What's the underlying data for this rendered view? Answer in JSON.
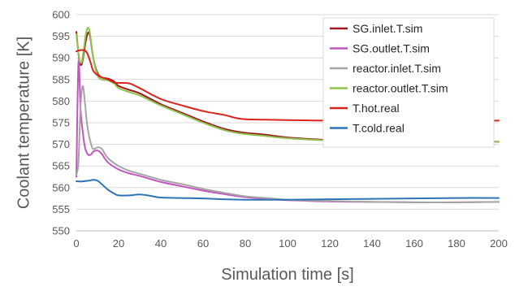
{
  "chart_data": {
    "type": "line",
    "title": "",
    "xlabel": "Simulation time [s]",
    "ylabel": "Coolant temperature [K]",
    "xlim": [
      0,
      200
    ],
    "ylim": [
      550,
      600
    ],
    "xticks": [
      0,
      20,
      40,
      60,
      80,
      100,
      120,
      140,
      160,
      180,
      200
    ],
    "yticks": [
      550,
      555,
      560,
      565,
      570,
      575,
      580,
      585,
      590,
      595,
      600
    ],
    "grid": "horizontal",
    "legend_position": "top-right",
    "series": [
      {
        "name": "SG.inlet.T.sim",
        "color": "#a0171d",
        "x": [
          0,
          0.8,
          1.5,
          2.5,
          3.5,
          4.5,
          5.5,
          6.5,
          8,
          10,
          12,
          15,
          18,
          20,
          25,
          30,
          40,
          50,
          60,
          70,
          78,
          90,
          100,
          120,
          140,
          160,
          180,
          200
        ],
        "y": [
          596,
          592,
          589,
          588.5,
          591,
          594,
          595.8,
          595,
          590,
          586.5,
          585.5,
          585.2,
          584.5,
          583.5,
          582.6,
          581.8,
          579.3,
          577.3,
          575.3,
          573.6,
          572.8,
          572.2,
          571.6,
          571,
          570.9,
          570.8,
          570.7,
          570.6
        ]
      },
      {
        "name": "SG.outlet.T.sim",
        "color": "#c156be",
        "x": [
          0,
          1,
          2,
          3,
          4,
          5,
          6,
          7,
          8,
          10,
          12,
          15,
          20,
          25,
          30,
          40,
          50,
          60,
          70,
          80,
          90,
          100,
          120,
          140,
          160,
          180,
          200
        ],
        "y": [
          562.5,
          589,
          578,
          573,
          569.5,
          568,
          567.5,
          567.7,
          568.3,
          568.6,
          567.8,
          565.8,
          564.2,
          563.3,
          562.7,
          561.3,
          560.3,
          559.3,
          558.5,
          557.8,
          557.4,
          557.1,
          556.8,
          556.7,
          556.6,
          556.6,
          556.7
        ]
      },
      {
        "name": "reactor.inlet.T.sim",
        "color": "#a5a5a5",
        "x": [
          0,
          1,
          2,
          3,
          4,
          5,
          6,
          7,
          8,
          10,
          12,
          15,
          20,
          25,
          30,
          40,
          50,
          60,
          70,
          80,
          90,
          100,
          120,
          140,
          160,
          180,
          200
        ],
        "y": [
          563,
          566,
          579,
          583.5,
          580,
          575,
          572,
          570,
          568.9,
          569.3,
          569,
          566.8,
          565,
          563.9,
          563.2,
          561.8,
          560.8,
          559.7,
          558.8,
          558,
          557.6,
          557.2,
          556.9,
          556.7,
          556.6,
          556.6,
          556.7
        ]
      },
      {
        "name": "reactor.outlet.T.sim",
        "color": "#8fc44e",
        "x": [
          0,
          0.8,
          1.5,
          2.5,
          3.5,
          4.5,
          5.5,
          6.5,
          8,
          10,
          12,
          15,
          18,
          20,
          25,
          30,
          40,
          50,
          60,
          70,
          78,
          90,
          100,
          120,
          140,
          160,
          180,
          200
        ],
        "y": [
          595.5,
          592,
          589.5,
          589,
          592,
          595.5,
          597,
          595.5,
          590,
          586,
          585,
          584.8,
          584,
          583,
          582.1,
          581.3,
          579,
          577,
          575,
          573.3,
          572.5,
          571.9,
          571.4,
          570.9,
          570.8,
          570.7,
          570.6,
          570.6
        ]
      },
      {
        "name": "T.hot.real",
        "color": "#d9241b",
        "x": [
          0,
          1,
          2,
          3,
          4,
          5,
          6,
          7,
          8,
          10,
          12,
          15,
          18,
          20,
          25,
          30,
          40,
          50,
          60,
          70,
          78,
          90,
          100,
          120,
          140,
          160,
          180,
          200
        ],
        "y": [
          591.5,
          591.7,
          591.8,
          591.8,
          591.7,
          591.2,
          590,
          588.5,
          587,
          586,
          585.5,
          585,
          584.3,
          584.2,
          584.1,
          583,
          580.5,
          579,
          577.7,
          576.8,
          575.9,
          575.7,
          575.6,
          575.5,
          575.5,
          575.5,
          575.5,
          575.5
        ]
      },
      {
        "name": "T.cold.real",
        "color": "#2e74b5",
        "x": [
          0,
          2,
          4,
          6,
          8,
          10,
          12,
          15,
          18,
          20,
          25,
          30,
          35,
          40,
          50,
          60,
          70,
          80,
          90,
          100,
          120,
          140,
          160,
          180,
          200
        ],
        "y": [
          561.5,
          561.4,
          561.5,
          561.6,
          561.8,
          561.6,
          560.8,
          559.5,
          558.6,
          558.2,
          558.2,
          558.4,
          558.1,
          557.7,
          557.6,
          557.5,
          557.3,
          557.2,
          557.2,
          557.2,
          557.3,
          557.4,
          557.5,
          557.6,
          557.6
        ]
      }
    ]
  }
}
